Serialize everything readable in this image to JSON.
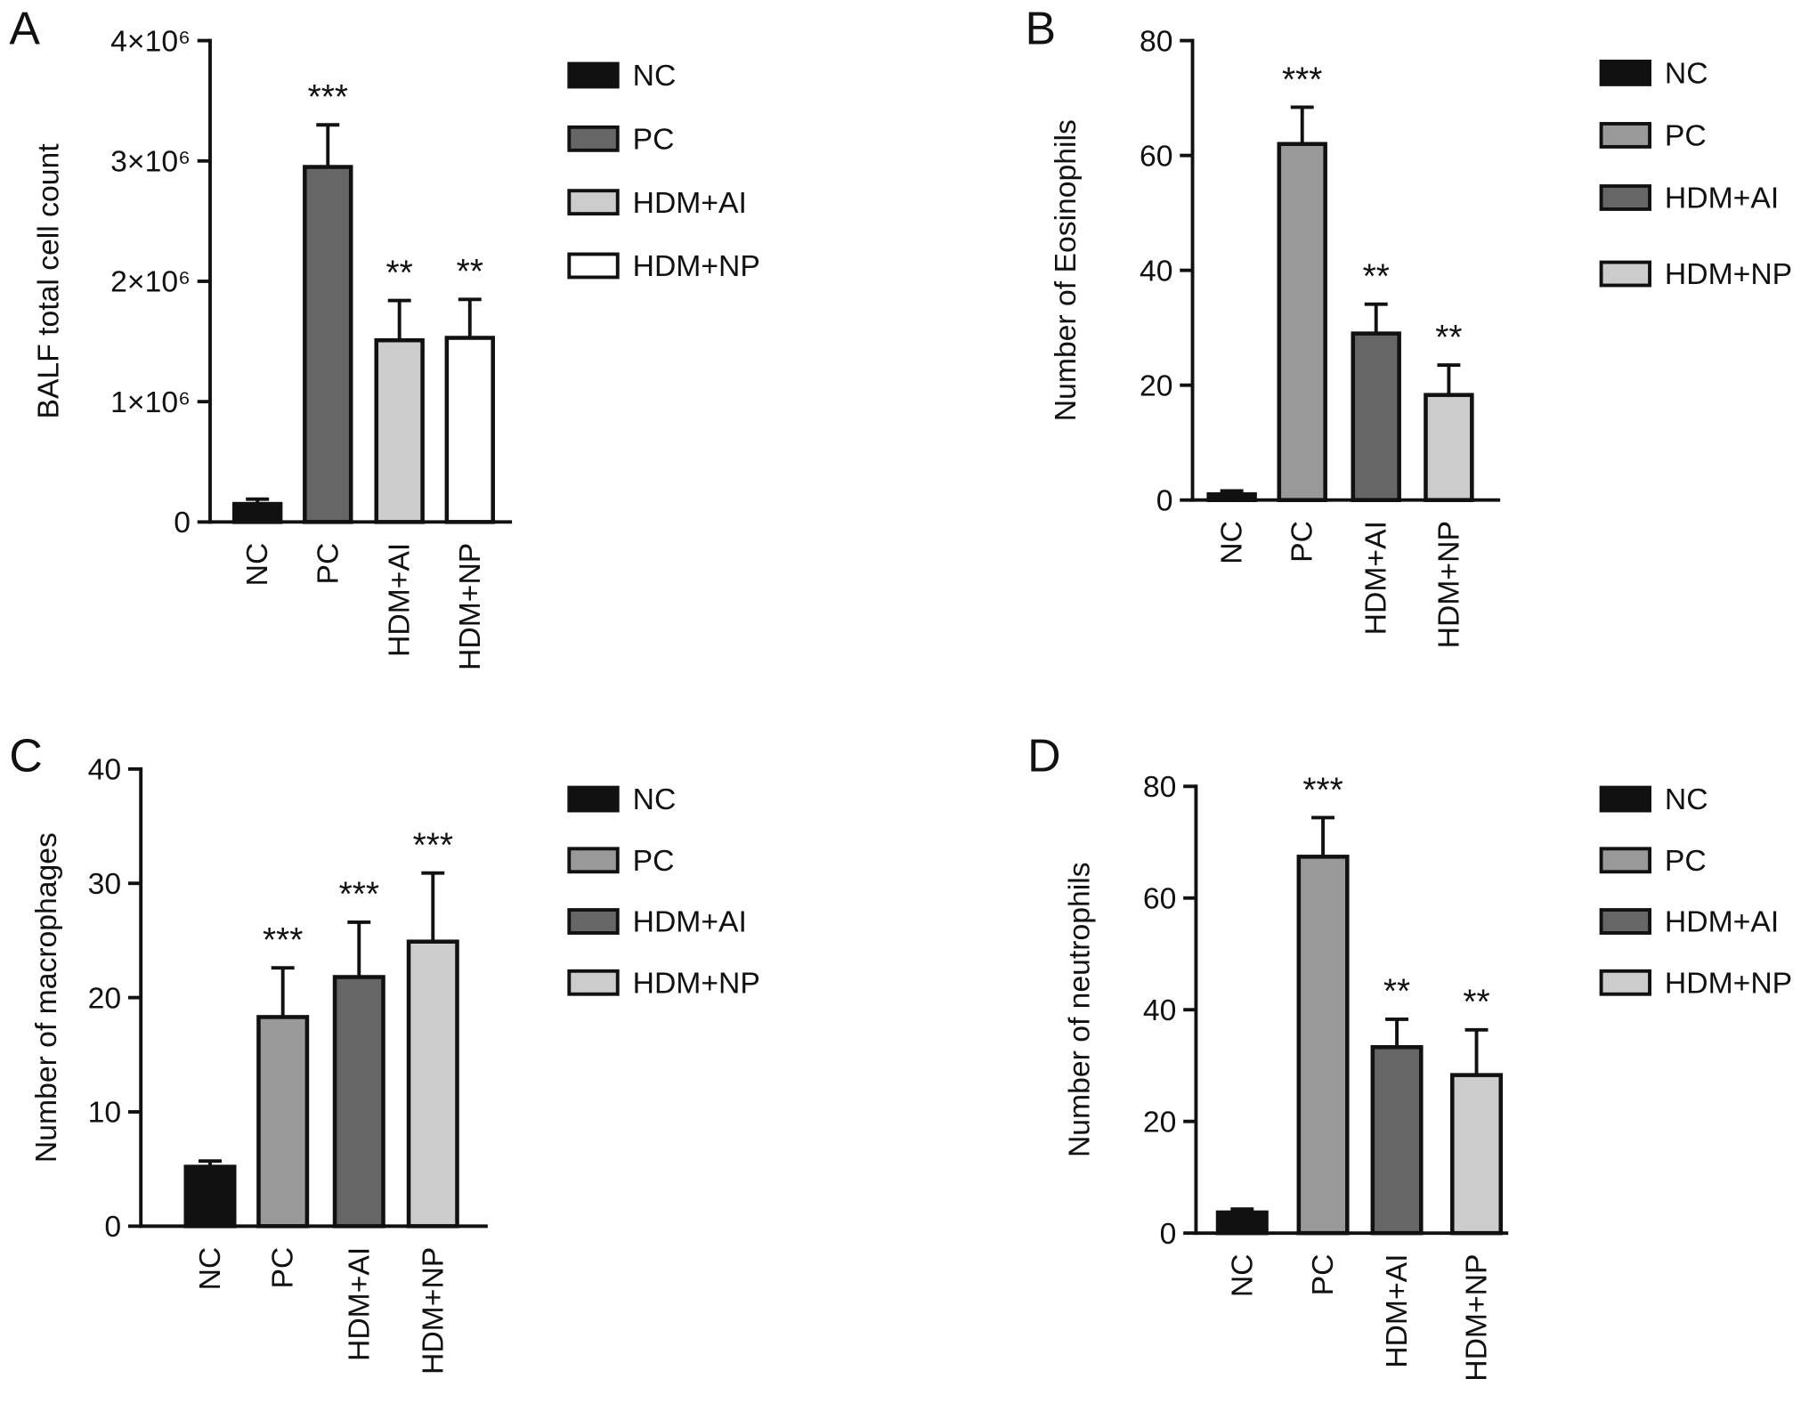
{
  "chart_data": [
    {
      "panel": "A",
      "type": "bar",
      "categories": [
        "NC",
        "PC",
        "HDM+AI",
        "HDM+NP"
      ],
      "values": [
        150000,
        2950000,
        1510000,
        1530000
      ],
      "error": [
        40000,
        350000,
        330000,
        320000
      ],
      "significance": [
        "",
        "***",
        "**",
        "**"
      ],
      "colors": [
        "#111111",
        "#666666",
        "#cccccc",
        "#ffffff"
      ],
      "ylabel": "BALF total cell count",
      "ylim": [
        0,
        4000000
      ],
      "yticks": [
        0,
        1000000,
        2000000,
        3000000,
        4000000
      ],
      "ytick_labels": [
        "0",
        "1×10⁶",
        "2×10⁶",
        "3×10⁶",
        "4×10⁶"
      ],
      "legend": {
        "position": "right",
        "entries": [
          "NC",
          "PC",
          "HDM+AI",
          "HDM+NP"
        ]
      },
      "grid": false
    },
    {
      "panel": "B",
      "type": "bar",
      "categories": [
        "NC",
        "PC",
        "HDM+AI",
        "HDM+NP"
      ],
      "values": [
        1.0,
        62.0,
        29.0,
        18.3
      ],
      "error": [
        0.6,
        6.4,
        5.1,
        5.2
      ],
      "significance": [
        "",
        "***",
        "**",
        "**"
      ],
      "colors": [
        "#111111",
        "#999999",
        "#666666",
        "#cccccc"
      ],
      "ylabel": "Number of Eosinophils",
      "ylim": [
        0,
        80
      ],
      "yticks": [
        0,
        20,
        40,
        60,
        80
      ],
      "ytick_labels": [
        "0",
        "20",
        "40",
        "60",
        "80"
      ],
      "legend": {
        "position": "right",
        "entries": [
          "NC",
          "PC",
          "HDM+AI",
          "HDM+NP"
        ]
      },
      "grid": false
    },
    {
      "panel": "C",
      "type": "bar",
      "categories": [
        "NC",
        "PC",
        "HDM+AI",
        "HDM+NP"
      ],
      "values": [
        5.2,
        18.3,
        21.8,
        24.9
      ],
      "error": [
        0.5,
        4.3,
        4.8,
        6.0
      ],
      "significance": [
        "",
        "***",
        "***",
        "***"
      ],
      "colors": [
        "#111111",
        "#999999",
        "#666666",
        "#cccccc"
      ],
      "ylabel": "Number of macrophages",
      "ylim": [
        0,
        40
      ],
      "yticks": [
        0,
        10,
        20,
        30,
        40
      ],
      "ytick_labels": [
        "0",
        "10",
        "20",
        "30",
        "40"
      ],
      "legend": {
        "position": "right",
        "entries": [
          "NC",
          "PC",
          "HDM+AI",
          "HDM+NP"
        ]
      },
      "grid": false
    },
    {
      "panel": "D",
      "type": "bar",
      "categories": [
        "NC",
        "PC",
        "HDM+AI",
        "HDM+NP"
      ],
      "values": [
        3.7,
        67.4,
        33.3,
        28.3
      ],
      "error": [
        0.6,
        7.0,
        5.0,
        8.1
      ],
      "significance": [
        "",
        "***",
        "**",
        "**"
      ],
      "colors": [
        "#111111",
        "#999999",
        "#666666",
        "#cccccc"
      ],
      "ylabel": "Number of neutrophils",
      "ylim": [
        0,
        80
      ],
      "yticks": [
        0,
        20,
        40,
        60,
        80
      ],
      "ytick_labels": [
        "0",
        "20",
        "40",
        "60",
        "80"
      ],
      "legend": {
        "position": "right",
        "entries": [
          "NC",
          "PC",
          "HDM+AI",
          "HDM+NP"
        ]
      },
      "grid": false
    }
  ]
}
